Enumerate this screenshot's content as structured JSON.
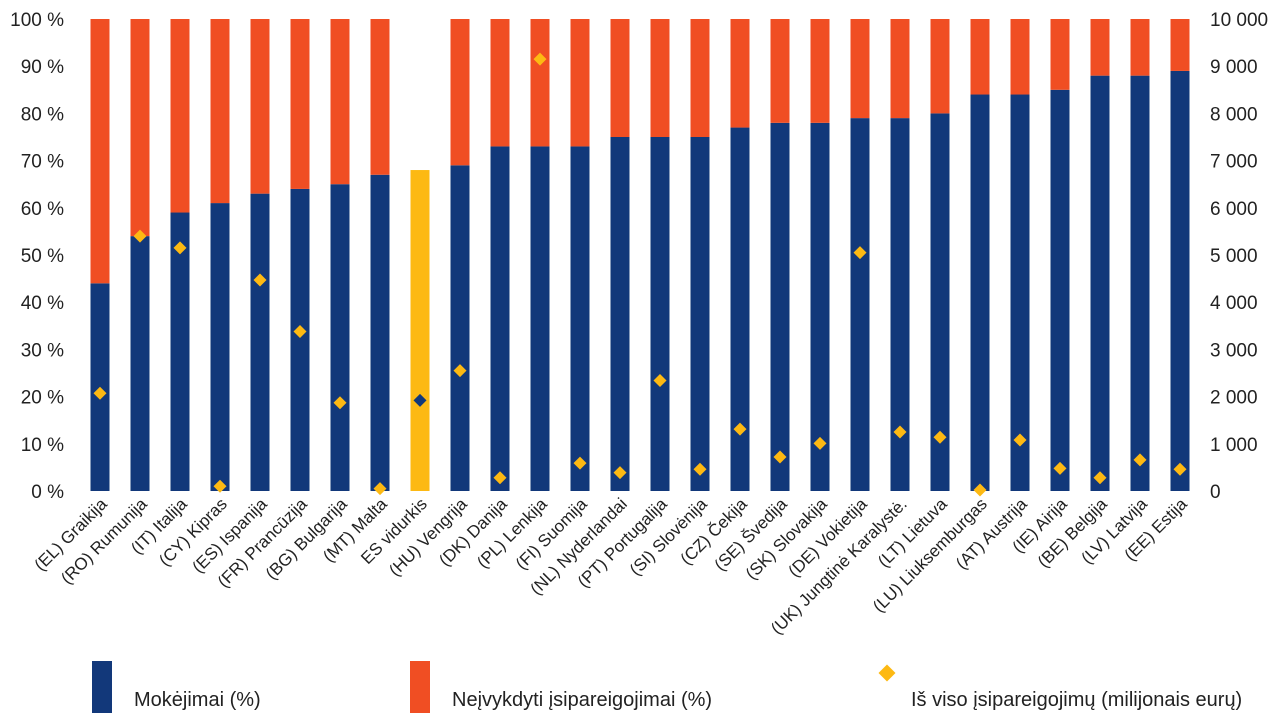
{
  "colors": {
    "payments": "#12387a",
    "outstanding": "#f04e23",
    "eu_average": "#fdb913",
    "total_marker": "#fdb913",
    "eu_marker": "#12387a"
  },
  "legend": {
    "payments": "Mokėjimai (%)",
    "outstanding": "Neįvykdyti įsipareigojimai (%)",
    "total": "Iš viso įsipareigojimų (milijonais eurų)"
  },
  "chart_data": {
    "type": "bar",
    "stacked": true,
    "categories": [
      "(EL) Graikija",
      "(RO) Rumunija",
      "(IT) Italija",
      "(CY) Kipras",
      "(ES) Ispanija",
      "(FR) Prancūzija",
      "(BG) Bulgarija",
      "(MT) Malta",
      "ES vidurkis",
      "(HU) Vengrija",
      "(DK) Danija",
      "(PL) Lenkija",
      "(FI) Suomija",
      "(NL) Nyderlandai",
      "(PT) Portugalija",
      "(SI) Slovėnija",
      "(CZ) Čekija",
      "(SE) Švedija",
      "(SK) Slovakija",
      "(DE) Vokietija",
      "(UK) Jungtinė Karalystė.",
      "(LT) Lietuva",
      "(LU) Liuksemburgas",
      "(AT) Austrija",
      "(IE) Airija",
      "(BE) Belgija",
      "(LV) Latvija",
      "(EE) Estija"
    ],
    "series": [
      {
        "name": "Mokėjimai (%)",
        "axis": "left",
        "values": [
          44,
          54,
          59,
          61,
          63,
          64,
          65,
          67,
          68,
          69,
          73,
          73,
          73,
          75,
          75,
          75,
          77,
          78,
          78,
          79,
          79,
          80,
          84,
          84,
          85,
          88,
          88,
          89
        ]
      },
      {
        "name": "Neįvykdyti įsipareigojimai (%)",
        "axis": "left",
        "values": [
          56,
          46,
          41,
          39,
          37,
          36,
          35,
          33,
          32,
          31,
          27,
          27,
          27,
          25,
          25,
          25,
          23,
          22,
          22,
          21,
          21,
          20,
          16,
          16,
          15,
          12,
          12,
          11
        ]
      },
      {
        "name": "Iš viso įsipareigojimų (milijonais eurų)",
        "axis": "right",
        "marker": "diamond",
        "values": [
          2070,
          5400,
          5150,
          100,
          4470,
          3380,
          1870,
          50,
          1920,
          2550,
          280,
          9150,
          590,
          390,
          2340,
          460,
          1310,
          720,
          1010,
          5050,
          1250,
          1140,
          20,
          1080,
          480,
          280,
          660,
          460
        ]
      }
    ],
    "eu_average_category": "ES vidurkis",
    "y_left": {
      "ticks": [
        "0 %",
        "10 %",
        "20 %",
        "30 %",
        "40 %",
        "50 %",
        "60 %",
        "70 %",
        "80 %",
        "90 %",
        "100 %"
      ],
      "range": [
        0,
        100
      ]
    },
    "y_right": {
      "ticks": [
        "0",
        "1 000",
        "2 000",
        "3 000",
        "4 000",
        "5 000",
        "6 000",
        "7 000",
        "8 000",
        "9 000",
        "10 000"
      ],
      "range": [
        0,
        10000
      ]
    },
    "grid": false,
    "legend_position": "bottom"
  }
}
